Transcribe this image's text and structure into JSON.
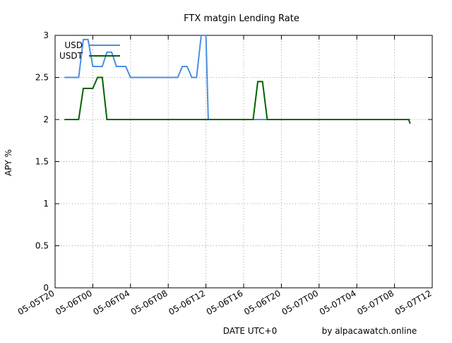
{
  "chart_data": {
    "type": "line",
    "title": "FTX matgin Lending Rate",
    "xlabel": "DATE UTC+0",
    "ylabel": "APY %",
    "credit": "by alpacawatch.online",
    "ylim": [
      0,
      3
    ],
    "yticks": [
      0,
      0.5,
      1,
      1.5,
      2,
      2.5,
      3
    ],
    "ytick_labels": [
      "0",
      "0.5",
      "1",
      "1.5",
      "2",
      "2.5",
      "3"
    ],
    "xlim": [
      "2022-05-05T20:00",
      "2022-05-07T12:00"
    ],
    "xticks": [
      "2022-05-05T20:00",
      "2022-05-06T00:00",
      "2022-05-06T04:00",
      "2022-05-06T08:00",
      "2022-05-06T12:00",
      "2022-05-06T16:00",
      "2022-05-06T20:00",
      "2022-05-07T00:00",
      "2022-05-07T04:00",
      "2022-05-07T08:00",
      "2022-05-07T12:00"
    ],
    "xtick_labels": [
      "05-05T20",
      "05-06T00",
      "05-06T04",
      "05-06T08",
      "05-06T12",
      "05-06T16",
      "05-06T20",
      "05-07T00",
      "05-07T04",
      "05-07T08",
      "05-07T12"
    ],
    "grid": true,
    "legend_position": "top-left",
    "series": [
      {
        "name": "USD",
        "color": "#4a90e2",
        "x": [
          "2022-05-05T21:00",
          "2022-05-05T22:30",
          "2022-05-05T23:00",
          "2022-05-05T23:30",
          "2022-05-06T00:00",
          "2022-05-06T00:30",
          "2022-05-06T01:00",
          "2022-05-06T01:30",
          "2022-05-06T02:00",
          "2022-05-06T02:30",
          "2022-05-06T03:00",
          "2022-05-06T03:30",
          "2022-05-06T04:00",
          "2022-05-06T05:00",
          "2022-05-06T06:00",
          "2022-05-06T07:00",
          "2022-05-06T08:00",
          "2022-05-06T09:00",
          "2022-05-06T09:30",
          "2022-05-06T10:00",
          "2022-05-06T10:30",
          "2022-05-06T11:00",
          "2022-05-06T11:30",
          "2022-05-06T12:00",
          "2022-05-06T12:15",
          "2022-05-06T13:00",
          "2022-05-06T14:00",
          "2022-05-06T15:00",
          "2022-05-06T16:00",
          "2022-05-06T17:00",
          "2022-05-06T18:00",
          "2022-05-06T19:00",
          "2022-05-06T20:00",
          "2022-05-07T00:00",
          "2022-05-07T04:00",
          "2022-05-07T08:00",
          "2022-05-07T09:00",
          "2022-05-07T09:30",
          "2022-05-07T09:40"
        ],
        "y": [
          2.5,
          2.5,
          2.95,
          2.95,
          2.63,
          2.63,
          2.63,
          2.8,
          2.8,
          2.63,
          2.63,
          2.63,
          2.5,
          2.5,
          2.5,
          2.5,
          2.5,
          2.5,
          2.63,
          2.63,
          2.5,
          2.5,
          3.0,
          3.0,
          2.0,
          2.0,
          2.0,
          2.0,
          2.0,
          2.0,
          2.0,
          2.0,
          2.0,
          2.0,
          2.0,
          2.0,
          2.0,
          2.0,
          2.0
        ]
      },
      {
        "name": "USDT",
        "color": "#006400",
        "x": [
          "2022-05-05T21:00",
          "2022-05-05T22:30",
          "2022-05-05T23:00",
          "2022-05-05T23:30",
          "2022-05-06T00:00",
          "2022-05-06T00:30",
          "2022-05-06T01:00",
          "2022-05-06T01:30",
          "2022-05-06T02:00",
          "2022-05-06T03:00",
          "2022-05-06T04:00",
          "2022-05-06T06:00",
          "2022-05-06T08:00",
          "2022-05-06T10:00",
          "2022-05-06T12:00",
          "2022-05-06T14:00",
          "2022-05-06T16:00",
          "2022-05-06T17:00",
          "2022-05-06T17:30",
          "2022-05-06T18:00",
          "2022-05-06T18:30",
          "2022-05-06T19:00",
          "2022-05-06T20:00",
          "2022-05-07T00:00",
          "2022-05-07T04:00",
          "2022-05-07T08:00",
          "2022-05-07T09:00",
          "2022-05-07T09:30",
          "2022-05-07T09:40"
        ],
        "y": [
          2.0,
          2.0,
          2.37,
          2.37,
          2.37,
          2.5,
          2.5,
          2.0,
          2.0,
          2.0,
          2.0,
          2.0,
          2.0,
          2.0,
          2.0,
          2.0,
          2.0,
          2.0,
          2.45,
          2.45,
          2.0,
          2.0,
          2.0,
          2.0,
          2.0,
          2.0,
          2.0,
          2.0,
          1.95
        ]
      }
    ]
  }
}
